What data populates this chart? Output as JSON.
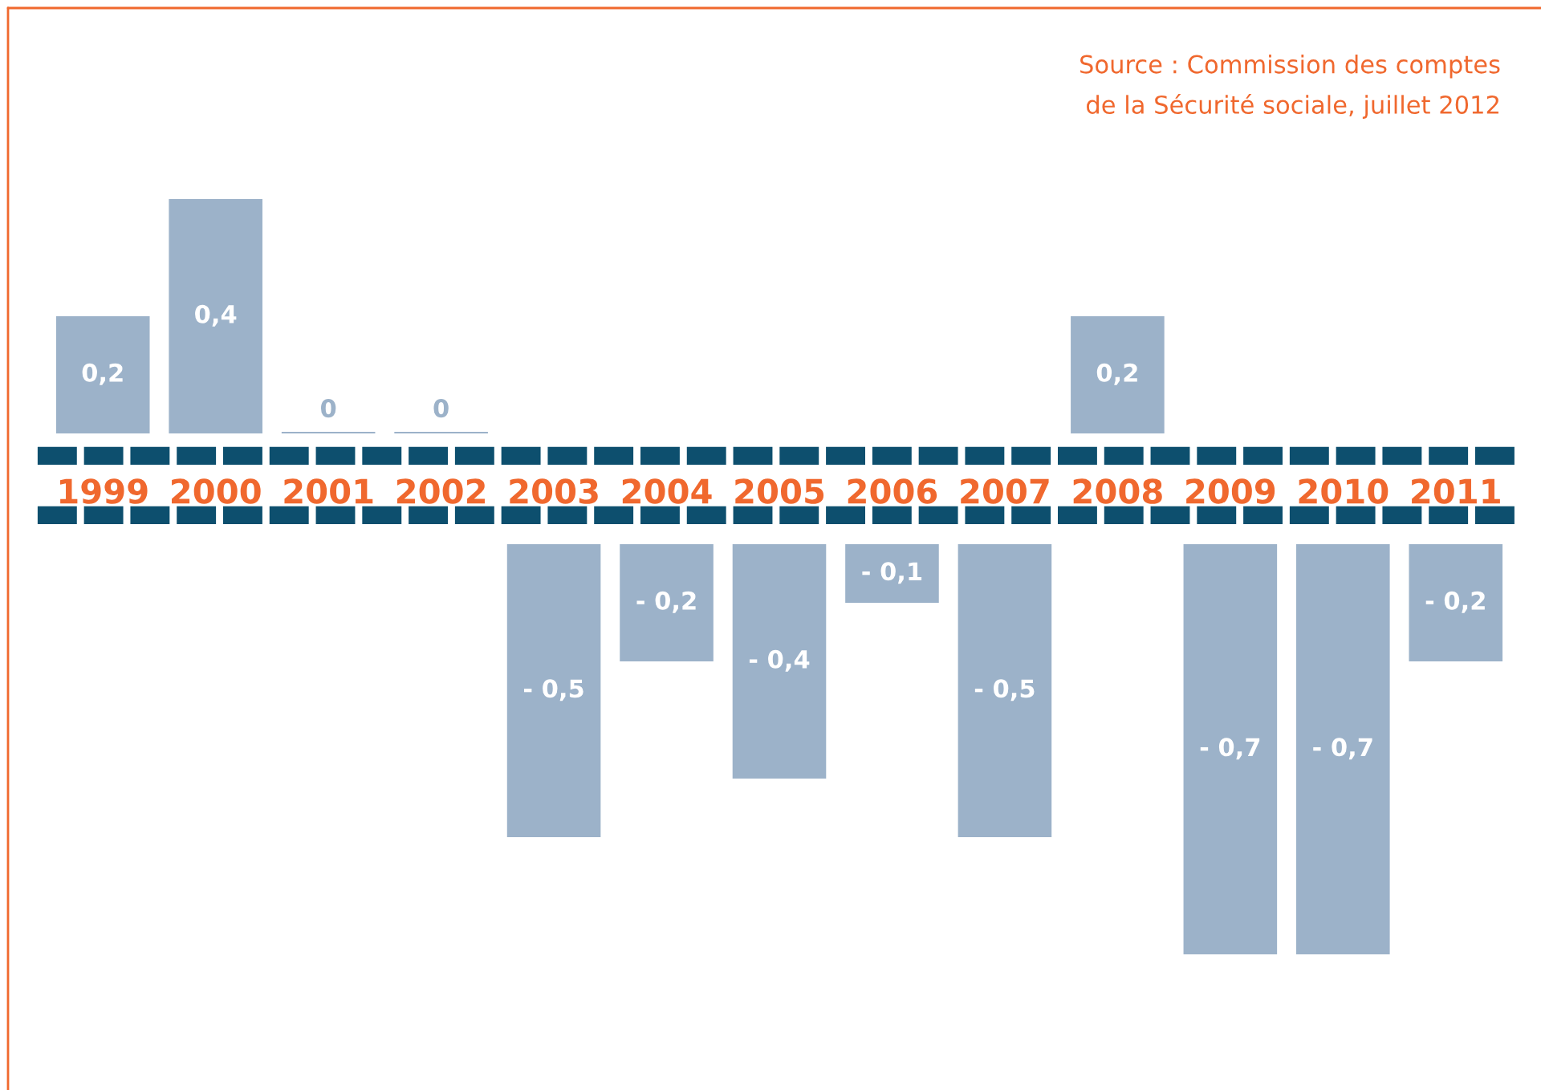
{
  "chart_data": [
    {
      "type": "bar",
      "categories": [
        "1999",
        "2000",
        "2001",
        "2002",
        "2003",
        "2004",
        "2005",
        "2006",
        "2007",
        "2008",
        "2009",
        "2010",
        "2011"
      ],
      "values": [
        0.2,
        0.4,
        0,
        0,
        null,
        null,
        null,
        null,
        null,
        0.2,
        null,
        null,
        null
      ],
      "value_labels": [
        "0,2",
        "0,4",
        "0",
        "0",
        null,
        null,
        null,
        null,
        null,
        "0,2",
        null,
        null,
        null
      ],
      "color": "#9cb2c9",
      "tick_labels": "x",
      "annotations": [
        "Source : Commission des comptes\nde la Sécurité sociale, juillet 2012"
      ]
    },
    {
      "type": "bar",
      "categories": [
        "1999",
        "2000",
        "2001",
        "2002",
        "2003",
        "2004",
        "2005",
        "2006",
        "2007",
        "2008",
        "2009",
        "2010",
        "2011"
      ],
      "values": [
        null,
        null,
        null,
        null,
        -0.5,
        -0.2,
        -0.4,
        -0.1,
        -0.5,
        null,
        -0.7,
        -0.7,
        -0.2
      ],
      "value_labels": [
        null,
        null,
        null,
        null,
        "- 0,5",
        "- 0,2",
        "- 0,4",
        "- 0,1",
        "- 0,5",
        null,
        "- 0,7",
        "- 0,7",
        "- 0,2"
      ],
      "color": "#9cb2c9",
      "tick_labels": false
    }
  ]
}
